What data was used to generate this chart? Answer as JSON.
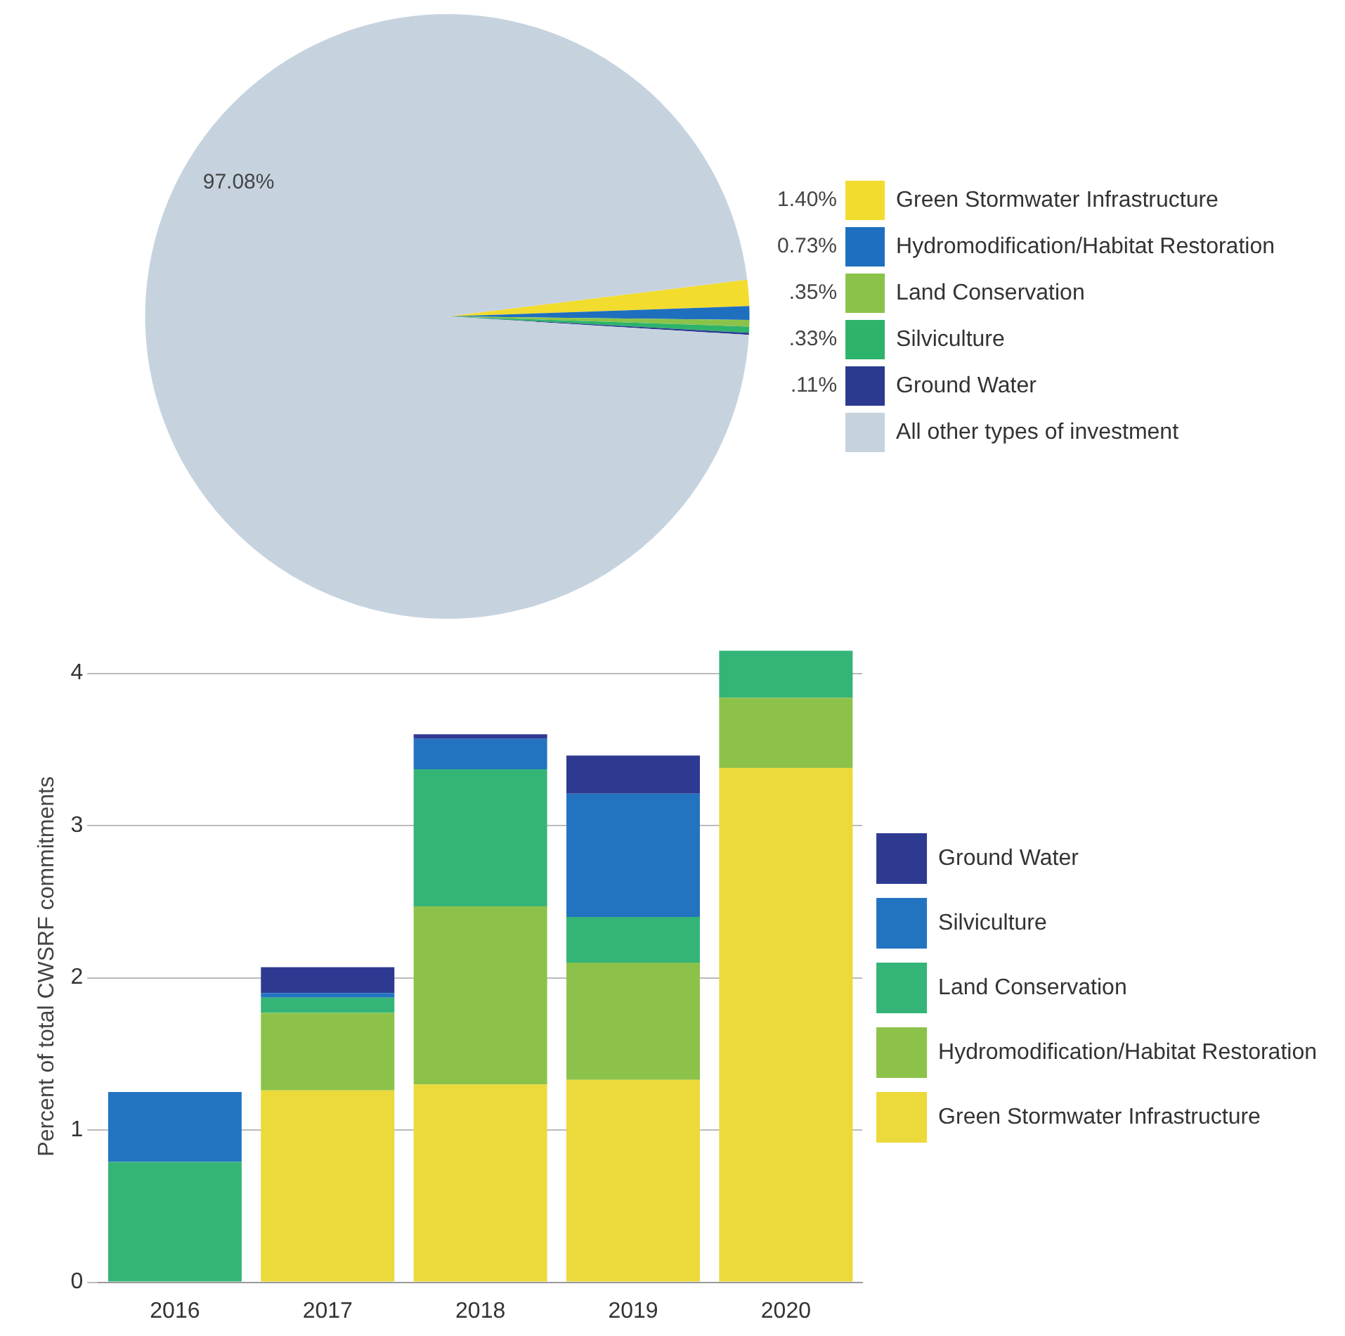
{
  "chart_data": [
    {
      "type": "pie",
      "categories": [
        "Green Stormwater Infrastructure",
        "Hydromodification/Habitat Restoration",
        "Land Conservation",
        "Silviculture",
        "Ground Water",
        "All other types of investment"
      ],
      "values": [
        1.4,
        0.73,
        0.35,
        0.33,
        0.11,
        97.08
      ],
      "colors": [
        "#f2dc2e",
        "#1f6fbf",
        "#8bc34a",
        "#2db36a",
        "#2b3a8f",
        "#c6d3df"
      ],
      "value_labels": [
        "1.40%",
        "0.73%",
        ".35%",
        ".33%",
        ".11%",
        "97.08%"
      ],
      "legend": "right"
    },
    {
      "type": "bar",
      "stacked": true,
      "categories": [
        "2016",
        "2017",
        "2018",
        "2019",
        "2020"
      ],
      "ylabel": "Percent of total CWSRF commitments",
      "series": [
        {
          "name": "Green Stormwater Infrastructure",
          "color": "#ecd93a",
          "values": [
            0,
            1.26,
            1.3,
            1.33,
            3.38
          ]
        },
        {
          "name": "Hydromodification/Habitat Restoration",
          "color": "#8cc24a",
          "values": [
            0,
            0.51,
            1.17,
            0.77,
            0.46
          ]
        },
        {
          "name": "Land Conservation",
          "color": "#34b577",
          "values": [
            0.79,
            0.1,
            0.9,
            0.3,
            0.31
          ]
        },
        {
          "name": "Silviculture",
          "color": "#2374c0",
          "values": [
            0.46,
            0.03,
            0.2,
            0.81,
            0
          ]
        },
        {
          "name": "Ground Water",
          "color": "#2e3a92",
          "values": [
            0,
            0.17,
            0.03,
            0.25,
            0
          ]
        }
      ],
      "ylim": [
        0,
        4.15
      ],
      "yticks": [
        0,
        1,
        2,
        3,
        4
      ],
      "grid": "y",
      "legend": "right"
    }
  ]
}
